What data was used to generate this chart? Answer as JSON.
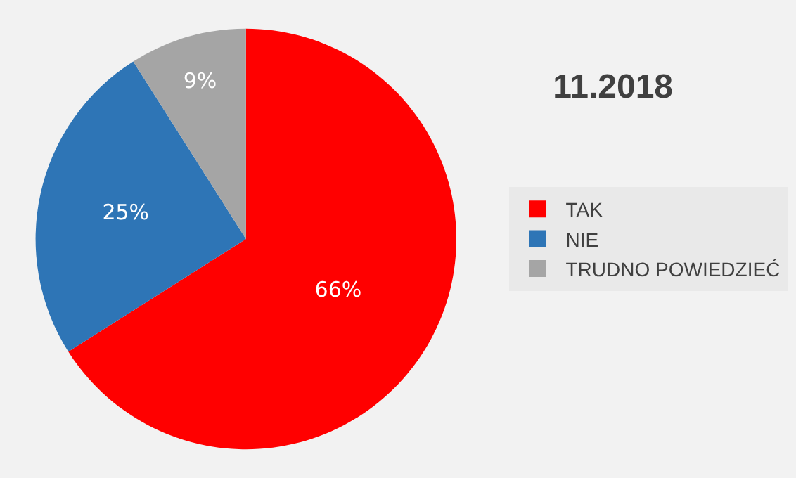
{
  "chart_data": {
    "type": "pie",
    "title": "11.2018",
    "categories": [
      "TAK",
      "NIE",
      "TRUDNO POWIEDZIEĆ"
    ],
    "values": [
      66,
      25,
      9
    ],
    "value_labels": [
      "66%",
      "25%",
      "9%"
    ],
    "colors": [
      "#ff0000",
      "#2e75b6",
      "#a5a5a5"
    ],
    "legend": "right"
  }
}
